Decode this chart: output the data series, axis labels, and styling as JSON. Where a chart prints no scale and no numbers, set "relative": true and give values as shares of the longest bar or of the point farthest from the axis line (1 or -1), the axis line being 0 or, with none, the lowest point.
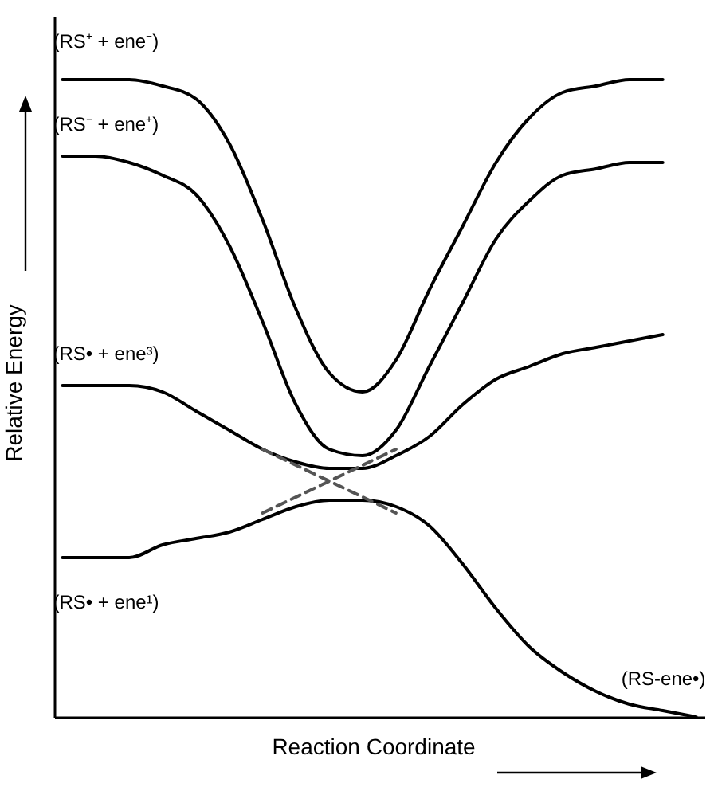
{
  "chart_data": {
    "type": "line",
    "relative": true,
    "xlabel": "Reaction Coordinate",
    "ylabel": "Relative Energy",
    "legend": false,
    "grid": false,
    "marker": "none",
    "categories": [
      null,
      null,
      null,
      null,
      null,
      null,
      null,
      null,
      null,
      null,
      null,
      null,
      null,
      null,
      null,
      null,
      null,
      null,
      null,
      null
    ],
    "series": [
      {
        "color": "#000000",
        "line_style": "solid",
        "values": [
          1,
          1,
          1,
          0.99,
          0.97,
          0.9,
          0.78,
          0.64,
          0.54,
          0.51,
          0.56,
          0.67,
          0.77,
          0.87,
          0.94,
          0.98,
          0.99,
          1,
          1,
          null
        ]
      },
      {
        "color": "#000000",
        "line_style": "solid",
        "values": [
          0.88,
          0.88,
          0.87,
          0.85,
          0.82,
          0.74,
          0.62,
          0.49,
          0.42,
          0.41,
          0.45,
          0.55,
          0.65,
          0.75,
          0.81,
          0.85,
          0.86,
          0.87,
          0.87,
          null
        ]
      },
      {
        "color": "#000000",
        "line_style": "solid",
        "values": [
          0.52,
          0.52,
          0.52,
          0.51,
          0.48,
          0.45,
          0.42,
          0.4,
          0.39,
          0.39,
          0.41,
          0.44,
          0.49,
          0.53,
          0.55,
          0.57,
          0.58,
          0.59,
          0.6,
          null
        ]
      },
      {
        "color": "#000000",
        "line_style": "solid",
        "values": [
          0.25,
          0.25,
          0.25,
          0.27,
          0.28,
          0.29,
          0.31,
          0.33,
          0.34,
          0.34,
          0.33,
          0.3,
          0.24,
          0.17,
          0.11,
          0.07,
          0.04,
          0.02,
          0.01,
          0
        ]
      },
      {
        "color": "#555555",
        "line_style": "dashed",
        "values": [
          null,
          null,
          null,
          null,
          null,
          null,
          0.42,
          null,
          null,
          null,
          0.32,
          null,
          null,
          null,
          null,
          null,
          null,
          null,
          null,
          null
        ]
      },
      {
        "color": "#555555",
        "line_style": "dashed",
        "values": [
          null,
          null,
          null,
          null,
          null,
          null,
          0.32,
          null,
          null,
          null,
          0.42,
          null,
          null,
          null,
          null,
          null,
          null,
          null,
          null,
          null
        ]
      }
    ],
    "annotations": [
      "(RS⁺ + ene⁻)",
      "(RS⁻ + ene⁺)",
      "(RS• + ene³)",
      "(RS• + ene¹)",
      "(RS-ene•)"
    ]
  }
}
